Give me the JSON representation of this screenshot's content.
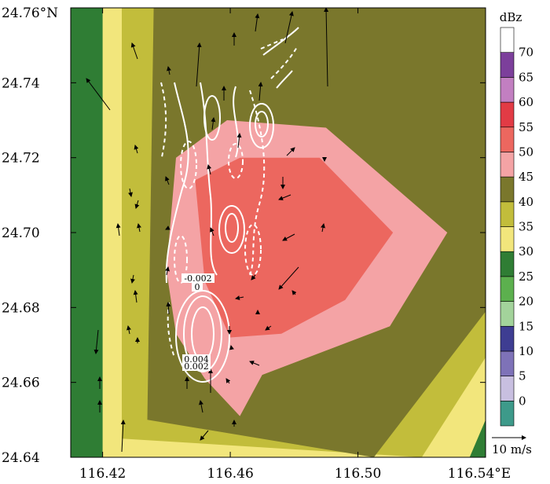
{
  "chart_data": {
    "type": "contour",
    "x_unit": "°E",
    "y_unit": "°N",
    "xlim": [
      116.41,
      116.54
    ],
    "ylim": [
      24.64,
      24.76
    ],
    "x_ticks": [
      116.42,
      116.46,
      116.5,
      116.54
    ],
    "x_tick_labels": [
      "116.42",
      "116.46",
      "116.50",
      "116.54°E"
    ],
    "y_ticks": [
      24.64,
      24.66,
      24.68,
      24.7,
      24.72,
      24.74,
      24.76
    ],
    "y_tick_labels": [
      "24.64",
      "24.66",
      "24.68",
      "24.70",
      "24.72",
      "24.74",
      "24.76°N"
    ],
    "colorbar": {
      "title": "dBz",
      "levels": [
        -5,
        0,
        5,
        10,
        15,
        20,
        25,
        30,
        35,
        40,
        45,
        50,
        55,
        60,
        65,
        70
      ],
      "tick_labels": [
        "0",
        "5",
        "10",
        "15",
        "20",
        "25",
        "30",
        "35",
        "40",
        "45",
        "50",
        "55",
        "60",
        "65",
        "70"
      ],
      "colors": [
        "#3d9a8a",
        "#c8bfe0",
        "#7e72b8",
        "#3e3d92",
        "#a3d39b",
        "#5cb04e",
        "#2f7d34",
        "#f2e67c",
        "#c2bd3b",
        "#7a772c",
        "#f4a3a5",
        "#ec675f",
        "#e23b45",
        "#c27fc1",
        "#7c3f9b",
        "#ffffff"
      ]
    },
    "reflectivity_regions": [
      {
        "dbz": 25,
        "color": "#2f7d34",
        "outline": [
          [
            116.406,
            24.76
          ],
          [
            116.4,
            24.64
          ],
          [
            116.54,
            24.64
          ],
          [
            116.555,
            24.76
          ]
        ]
      },
      {
        "dbz": 30,
        "color": "#f2e67c",
        "outline": [
          [
            116.42,
            24.76
          ],
          [
            116.42,
            24.64
          ],
          [
            116.535,
            24.64
          ],
          [
            116.55,
            24.67
          ],
          [
            116.55,
            24.76
          ]
        ]
      },
      {
        "dbz": 35,
        "color": "#c2bd3b",
        "outline": [
          [
            116.426,
            24.76
          ],
          [
            116.426,
            24.645
          ],
          [
            116.52,
            24.64
          ],
          [
            116.55,
            24.68
          ],
          [
            116.55,
            24.76
          ]
        ]
      },
      {
        "dbz": 40,
        "color": "#7a772c",
        "outline": [
          [
            116.436,
            24.76
          ],
          [
            116.434,
            24.65
          ],
          [
            116.505,
            24.64
          ],
          [
            116.55,
            24.69
          ],
          [
            116.55,
            24.76
          ]
        ]
      },
      {
        "dbz": 45,
        "color": "#f4a3a5",
        "outline": [
          [
            116.443,
            24.72
          ],
          [
            116.459,
            24.73
          ],
          [
            116.49,
            24.728
          ],
          [
            116.528,
            24.7
          ],
          [
            116.51,
            24.675
          ],
          [
            116.47,
            24.662
          ],
          [
            116.463,
            24.651
          ],
          [
            116.452,
            24.661
          ],
          [
            116.443,
            24.673
          ],
          [
            116.44,
            24.69
          ]
        ]
      },
      {
        "dbz": 50,
        "color": "#ec675f",
        "outline": [
          [
            116.449,
            24.714
          ],
          [
            116.463,
            24.72
          ],
          [
            116.488,
            24.72
          ],
          [
            116.511,
            24.7
          ],
          [
            116.496,
            24.682
          ],
          [
            116.476,
            24.673
          ],
          [
            116.46,
            24.672
          ],
          [
            116.452,
            24.687
          ]
        ]
      }
    ],
    "vertical_velocity_contours": {
      "color": "#ffffff",
      "labels": [
        "-0.002",
        "0",
        "0.004",
        "0.002"
      ],
      "note": "dashed = negative"
    },
    "wind_vector_reference": {
      "value": "10",
      "unit": "m/s"
    }
  }
}
